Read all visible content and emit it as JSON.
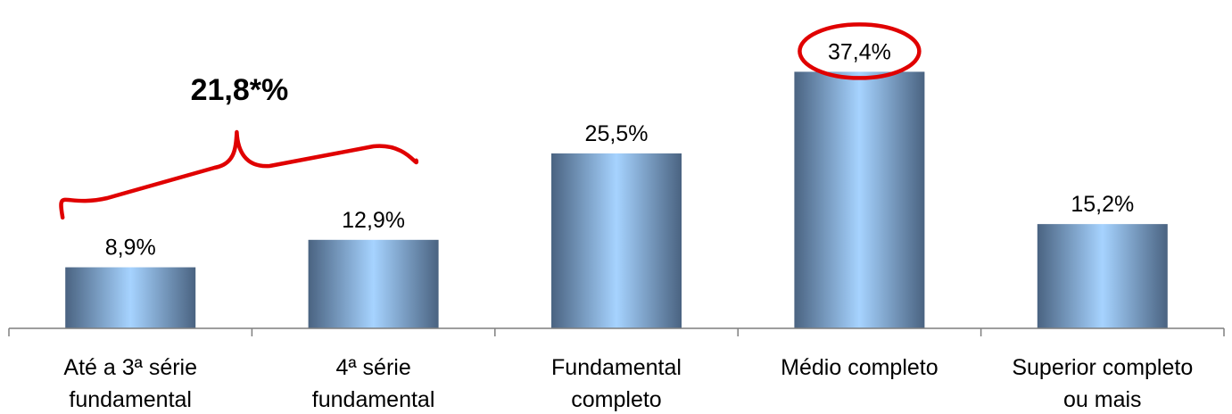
{
  "chart_data": {
    "type": "bar",
    "categories": [
      [
        "Até a 3ª série",
        "fundamental"
      ],
      [
        "4ª série",
        "fundamental"
      ],
      [
        "Fundamental",
        "completo"
      ],
      [
        "Médio completo"
      ],
      [
        "Superior completo",
        "ou mais"
      ]
    ],
    "values": [
      8.9,
      12.9,
      25.5,
      37.4,
      15.2
    ],
    "value_labels": [
      "8,9%",
      "12,9%",
      "25,5%",
      "37,4%",
      "15,2%"
    ],
    "ylim": [
      0,
      45
    ],
    "grid": false,
    "legend": "none",
    "highlighted_index": 3,
    "annotation": {
      "text": "21,8*%",
      "spans_categories": [
        0,
        1
      ]
    },
    "colors": {
      "bar_edge": "#4a6381",
      "bar_center": "#a6d3ff",
      "axis": "#7f7f7f",
      "highlight": "#e00000"
    }
  }
}
